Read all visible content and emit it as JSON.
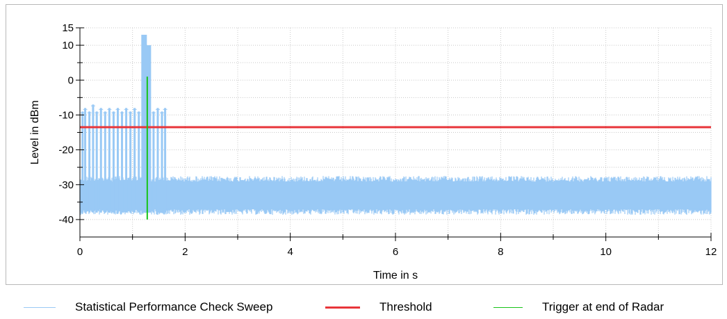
{
  "chart_data": {
    "type": "line",
    "xlabel": "Time in s",
    "ylabel": "Level in dBm",
    "xlim": [
      0,
      12
    ],
    "ylim": [
      -45,
      15
    ],
    "x_ticks": [
      0,
      2,
      4,
      6,
      8,
      10,
      12
    ],
    "y_ticks": [
      15,
      10,
      0,
      -10,
      -20,
      -30,
      -40
    ],
    "grid": true,
    "legend_position": "bottom",
    "series": [
      {
        "name": "Statistical Performance Check Sweep",
        "color": "#99c9f5",
        "kind": "noise_band",
        "noise_floor": {
          "x_range": [
            0,
            12
          ],
          "low": -38,
          "high": -28
        },
        "pulses": [
          {
            "x": 0.05,
            "peak": -9
          },
          {
            "x": 0.1,
            "peak": -8
          },
          {
            "x": 0.18,
            "peak": -9
          },
          {
            "x": 0.25,
            "peak": -7
          },
          {
            "x": 0.32,
            "peak": -9
          },
          {
            "x": 0.4,
            "peak": -8
          },
          {
            "x": 0.48,
            "peak": -9
          },
          {
            "x": 0.56,
            "peak": -8
          },
          {
            "x": 0.64,
            "peak": -9
          },
          {
            "x": 0.72,
            "peak": -8
          },
          {
            "x": 0.8,
            "peak": -9
          },
          {
            "x": 0.88,
            "peak": -8
          },
          {
            "x": 0.96,
            "peak": -9
          },
          {
            "x": 1.04,
            "peak": -8
          },
          {
            "x": 1.12,
            "peak": -9
          },
          {
            "x": 1.22,
            "peak": 13
          },
          {
            "x": 1.3,
            "peak": 10
          },
          {
            "x": 1.4,
            "peak": -9
          },
          {
            "x": 1.48,
            "peak": -8
          },
          {
            "x": 1.56,
            "peak": -9
          },
          {
            "x": 1.62,
            "peak": -8
          }
        ]
      },
      {
        "name": "Threshold",
        "color": "#e8353a",
        "kind": "hline",
        "y": -13.5,
        "x_range": [
          0,
          12
        ]
      },
      {
        "name": "Trigger at end of Radar",
        "color": "#17c417",
        "kind": "vline",
        "x": 1.28,
        "y_range": [
          -40,
          1
        ]
      }
    ]
  }
}
